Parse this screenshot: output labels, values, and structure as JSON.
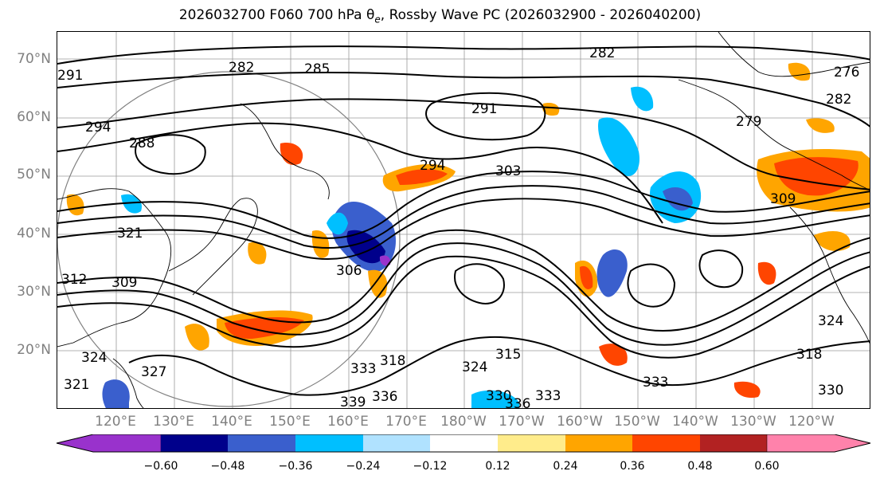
{
  "title": {
    "prefix": "2026032700 F060 700 hPa θ",
    "subscript": "e",
    "suffix": ", Rossby Wave PC (2026032900 - 2026040200)"
  },
  "lat_labels": [
    "70°N",
    "60°N",
    "50°N",
    "40°N",
    "30°N",
    "20°N"
  ],
  "lon_labels": [
    "120°E",
    "130°E",
    "140°E",
    "150°E",
    "160°E",
    "170°E",
    "180°W",
    "170°W",
    "160°W",
    "150°W",
    "140°W",
    "130°W",
    "120°W"
  ],
  "contour_labels": [
    "282",
    "285",
    "291",
    "282",
    "276",
    "282",
    "291",
    "294",
    "288",
    "279",
    "294",
    "303",
    "321",
    "312",
    "309",
    "306",
    "309",
    "324",
    "327",
    "321",
    "318",
    "333",
    "339",
    "336",
    "315",
    "324",
    "330",
    "333",
    "336",
    "333",
    "318",
    "324",
    "330"
  ],
  "colorbar": {
    "ticks": [
      "−0.60",
      "−0.48",
      "−0.36",
      "−0.24",
      "−0.12",
      "0.12",
      "0.24",
      "0.36",
      "0.48",
      "0.60"
    ],
    "colors": [
      "#9932CC",
      "#00008B",
      "#3A5FCD",
      "#00BFFF",
      "#B0E2FF",
      "#FFFFFF",
      "#FFEC8B",
      "#FFA500",
      "#FF4500",
      "#B22222",
      "#FF82AB"
    ]
  },
  "colors": {
    "contour": "#000000",
    "grid": "#9a9a9a",
    "axis_label": "#808080"
  }
}
